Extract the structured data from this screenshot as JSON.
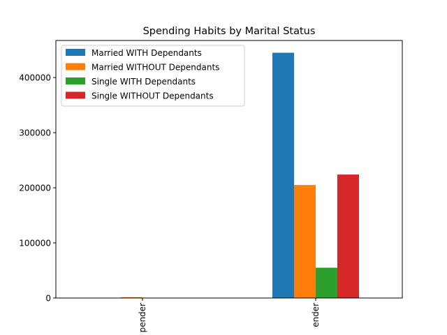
{
  "chart_data": {
    "type": "bar",
    "title": "Spending Habits by Marital Status",
    "categories": [
      "Non-Spender",
      "Spender"
    ],
    "visible_category_labels": [
      "pender",
      "ender"
    ],
    "series": [
      {
        "name": "Married WITH Dependants",
        "color": "#1f77b4",
        "values": [
          0,
          445000
        ]
      },
      {
        "name": "Married WITHOUT Dependants",
        "color": "#ff7f0e",
        "values": [
          1500,
          205000
        ]
      },
      {
        "name": "Single WITH Dependants",
        "color": "#2ca02c",
        "values": [
          0,
          55000
        ]
      },
      {
        "name": "Single WITHOUT Dependants",
        "color": "#d62728",
        "values": [
          0,
          224000
        ]
      }
    ],
    "yticks": [
      0,
      100000,
      200000,
      300000,
      400000
    ],
    "ytick_labels": [
      "0",
      "100000",
      "200000",
      "300000",
      "400000"
    ],
    "ylim": [
      0,
      467250
    ],
    "xlabel": "",
    "ylabel": "",
    "grid": false,
    "legend_position": "top-left"
  }
}
